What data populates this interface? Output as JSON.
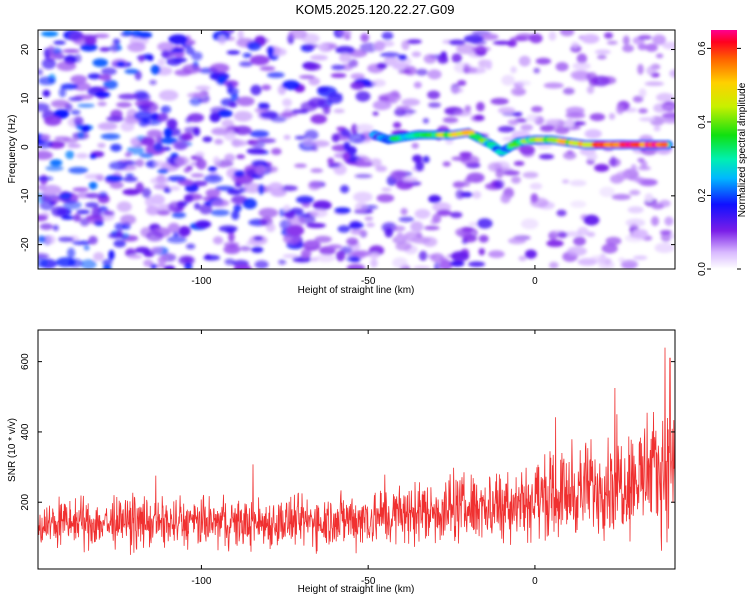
{
  "title": "KOM5.2025.120.22.27.G09",
  "colors": {
    "snr_line": "#f03030",
    "spectrogram_ridge": "spectral",
    "background_noise": "#8a2be2"
  },
  "chart_data": [
    {
      "type": "heatmap",
      "xlabel": "Height of straight line (km)",
      "ylabel": "Frequency (Hz)",
      "xlim": [
        -149,
        42
      ],
      "ylim": [
        -25,
        24
      ],
      "xticks": [
        -100,
        -50,
        0
      ],
      "yticks": [
        -20,
        -10,
        0,
        10,
        20
      ],
      "grid": false,
      "colorbar": {
        "label": "Normalized spectral amplitude",
        "range": [
          0,
          0.65
        ],
        "ticks": [
          0.0,
          0.2,
          0.4,
          0.6
        ],
        "colormap": "rainbow"
      },
      "ridge": {
        "x": [
          -48,
          -44,
          -40,
          -35,
          -30,
          -25,
          -20,
          -16,
          -13,
          -10,
          -5,
          0,
          5,
          10,
          15,
          20,
          25,
          30,
          35,
          40
        ],
        "y": [
          2.5,
          1.5,
          2.0,
          2.5,
          2.5,
          2.5,
          3.0,
          1.5,
          0.5,
          -1.0,
          1.0,
          1.5,
          1.5,
          1.0,
          0.5,
          0.5,
          0.5,
          0.5,
          0.5,
          0.5
        ],
        "amplitude": [
          0.18,
          0.28,
          0.32,
          0.35,
          0.38,
          0.42,
          0.45,
          0.4,
          0.3,
          0.22,
          0.35,
          0.4,
          0.42,
          0.45,
          0.52,
          0.58,
          0.6,
          0.62,
          0.6,
          0.55
        ]
      }
    },
    {
      "type": "line",
      "xlabel": "Height of straight line (km)",
      "ylabel": "SNR (10 * v/v)",
      "xlim": [
        -149,
        42
      ],
      "ylim": [
        10,
        690
      ],
      "xticks": [
        -100,
        -50,
        0
      ],
      "yticks": [
        200,
        400,
        600
      ],
      "grid": false,
      "series": [
        {
          "x": [
            -149,
            -140,
            -130,
            -120,
            -110,
            -100,
            -90,
            -80,
            -70,
            -60,
            -50,
            -40,
            -30,
            -20,
            -10,
            0,
            10,
            20,
            30,
            40,
            42
          ],
          "mean": [
            140,
            140,
            140,
            140,
            140,
            140,
            140,
            142,
            145,
            150,
            155,
            165,
            175,
            185,
            195,
            210,
            225,
            250,
            270,
            290,
            295
          ],
          "spread": [
            70,
            70,
            72,
            72,
            72,
            72,
            72,
            74,
            76,
            80,
            85,
            90,
            95,
            100,
            105,
            115,
            125,
            140,
            160,
            175,
            180
          ],
          "max_peaks": [
            {
              "x": 39,
              "y": 640
            },
            {
              "x": 40.5,
              "y": 610
            },
            {
              "x": 24,
              "y": 525
            }
          ]
        }
      ]
    }
  ]
}
